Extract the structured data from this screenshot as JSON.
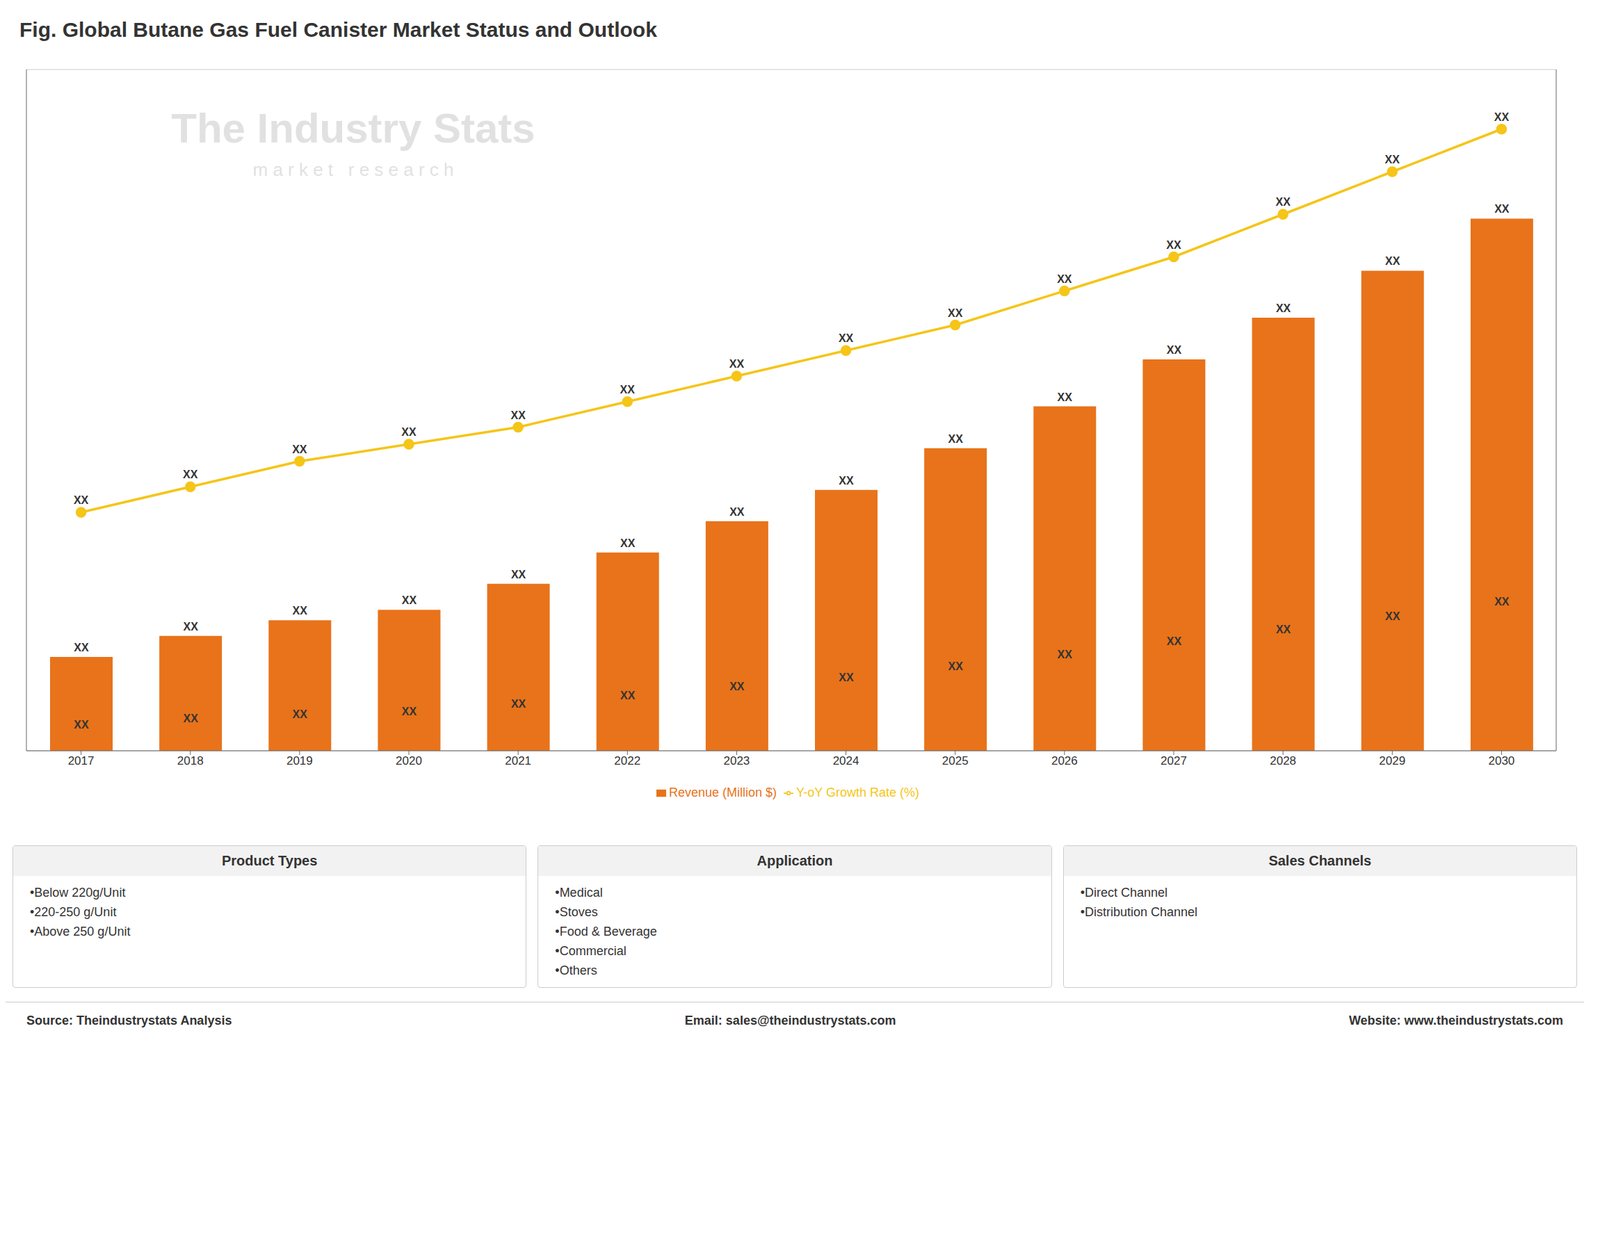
{
  "chart_data": {
    "type": "bar",
    "title": "Fig. Global Butane Gas Fuel Canister Market Status and Outlook",
    "categories": [
      "2017",
      "2018",
      "2019",
      "2020",
      "2021",
      "2022",
      "2023",
      "2024",
      "2025",
      "2026",
      "2027",
      "2028",
      "2029",
      "2030"
    ],
    "series": [
      {
        "name": "Revenue (Million $)",
        "type": "bar",
        "color": "#E8731A",
        "values": [
          18,
          22,
          25,
          27,
          32,
          38,
          44,
          50,
          58,
          66,
          75,
          83,
          92,
          102
        ],
        "value_labels": [
          "XX",
          "XX",
          "XX",
          "XX",
          "XX",
          "XX",
          "XX",
          "XX",
          "XX",
          "XX",
          "XX",
          "XX",
          "XX",
          "XX"
        ]
      },
      {
        "name": "Y-oY Growth Rate (%)",
        "type": "line",
        "color": "#F5C518",
        "marker": "circle",
        "axis": "y2",
        "values": [
          28,
          31,
          34,
          36,
          38,
          41,
          44,
          47,
          50,
          54,
          58,
          63,
          68,
          73
        ],
        "value_labels": [
          "XX",
          "XX",
          "XX",
          "XX",
          "XX",
          "XX",
          "XX",
          "XX",
          "XX",
          "XX",
          "XX",
          "XX",
          "XX",
          "XX"
        ]
      }
    ],
    "ylim": [
      0,
      130.56
    ],
    "yticks": [
      0,
      21.76,
      43.52,
      65.28,
      87.04,
      108.8,
      130.56
    ],
    "y2lim": [
      0,
      80
    ],
    "grid": true,
    "legend": "bottom",
    "tick_labels": "x",
    "annotations": [
      "The Industry Stats",
      "m a r k e t   r e s e a r c h"
    ],
    "panels": [
      {
        "title": "Product Types",
        "items": [
          "•Below 220g/Unit",
          "•220-250 g/Unit",
          "•Above 250 g/Unit"
        ]
      },
      {
        "title": "Application",
        "items": [
          "•Medical",
          "•Stoves",
          "•Food & Beverage",
          "•Commercial",
          "•Others"
        ]
      },
      {
        "title": "Sales Channels",
        "items": [
          "•Direct Channel",
          "•Distribution Channel"
        ]
      }
    ],
    "footer": [
      "Source: Theindustrystats Analysis",
      "Email: sales@theindustrystats.com",
      "Website: www.theindustrystats.com"
    ]
  }
}
